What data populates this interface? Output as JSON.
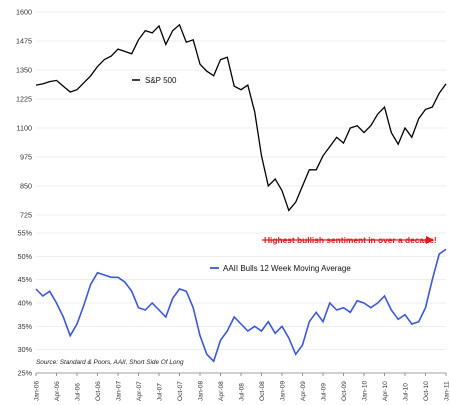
{
  "colors": {
    "sp500_line": "#000000",
    "aaii_line": "#3a58d8",
    "annotation": "#e01c1c",
    "grid": "#dddddd",
    "axis": "#555555"
  },
  "chart_data": [
    {
      "type": "line",
      "series": [
        {
          "name": "S&P 500",
          "x": [
            "2006-01",
            "2006-02",
            "2006-03",
            "2006-04",
            "2006-05",
            "2006-06",
            "2006-07",
            "2006-08",
            "2006-09",
            "2006-10",
            "2006-11",
            "2006-12",
            "2007-01",
            "2007-02",
            "2007-03",
            "2007-04",
            "2007-05",
            "2007-06",
            "2007-07",
            "2007-08",
            "2007-09",
            "2007-10",
            "2007-11",
            "2007-12",
            "2008-01",
            "2008-02",
            "2008-03",
            "2008-04",
            "2008-05",
            "2008-06",
            "2008-07",
            "2008-08",
            "2008-09",
            "2008-10",
            "2008-11",
            "2008-12",
            "2009-01",
            "2009-02",
            "2009-03",
            "2009-04",
            "2009-05",
            "2009-06",
            "2009-07",
            "2009-08",
            "2009-09",
            "2009-10",
            "2009-11",
            "2009-12",
            "2010-01",
            "2010-02",
            "2010-03",
            "2010-04",
            "2010-05",
            "2010-06",
            "2010-07",
            "2010-08",
            "2010-09",
            "2010-10",
            "2010-11",
            "2010-12",
            "2011-01"
          ],
          "values": [
            1285,
            1290,
            1300,
            1305,
            1280,
            1255,
            1265,
            1295,
            1325,
            1365,
            1395,
            1410,
            1440,
            1430,
            1420,
            1480,
            1520,
            1510,
            1540,
            1460,
            1520,
            1545,
            1470,
            1480,
            1375,
            1345,
            1325,
            1395,
            1405,
            1280,
            1265,
            1285,
            1170,
            980,
            850,
            880,
            830,
            745,
            780,
            850,
            920,
            920,
            980,
            1020,
            1060,
            1035,
            1100,
            1110,
            1080,
            1110,
            1160,
            1190,
            1080,
            1030,
            1100,
            1060,
            1140,
            1180,
            1190,
            1250,
            1290
          ]
        }
      ],
      "ylim": [
        725,
        1600
      ],
      "yticks": [
        "1600",
        "1475",
        "1350",
        "1225",
        "1100",
        "975",
        "850",
        "725"
      ],
      "legend": "S&P 500"
    },
    {
      "type": "line",
      "series": [
        {
          "name": "AAII Bulls 12 Week Moving Average",
          "x": [
            "2006-01",
            "2006-02",
            "2006-03",
            "2006-04",
            "2006-05",
            "2006-06",
            "2006-07",
            "2006-08",
            "2006-09",
            "2006-10",
            "2006-11",
            "2006-12",
            "2007-01",
            "2007-02",
            "2007-03",
            "2007-04",
            "2007-05",
            "2007-06",
            "2007-07",
            "2007-08",
            "2007-09",
            "2007-10",
            "2007-11",
            "2007-12",
            "2008-01",
            "2008-02",
            "2008-03",
            "2008-04",
            "2008-05",
            "2008-06",
            "2008-07",
            "2008-08",
            "2008-09",
            "2008-10",
            "2008-11",
            "2008-12",
            "2009-01",
            "2009-02",
            "2009-03",
            "2009-04",
            "2009-05",
            "2009-06",
            "2009-07",
            "2009-08",
            "2009-09",
            "2009-10",
            "2009-11",
            "2009-12",
            "2010-01",
            "2010-02",
            "2010-03",
            "2010-04",
            "2010-05",
            "2010-06",
            "2010-07",
            "2010-08",
            "2010-09",
            "2010-10",
            "2010-11",
            "2010-12",
            "2011-01"
          ],
          "values": [
            43,
            41.5,
            42.5,
            40,
            37,
            33,
            35.5,
            39.5,
            44,
            46.5,
            46,
            45.5,
            45.5,
            44.5,
            42.5,
            39,
            38.5,
            40,
            38.5,
            37,
            41,
            43,
            42.5,
            39,
            33,
            29,
            27.5,
            32,
            34,
            37,
            35.5,
            34,
            35,
            34,
            36,
            33.5,
            35,
            32.5,
            29,
            31,
            36,
            38,
            36,
            40,
            38.5,
            39,
            38,
            40.5,
            40,
            39,
            40,
            41.5,
            38.5,
            36.5,
            37.5,
            35.5,
            36,
            39,
            45,
            50.5,
            51.5
          ]
        }
      ],
      "ylim": [
        25,
        55
      ],
      "yticks": [
        "55%",
        "50%",
        "45%",
        "40%",
        "35%",
        "30%",
        "25%"
      ],
      "legend": "AAII Bulls 12 Week Moving Average",
      "annotation": "Highest bullish sentiment in over a decade!",
      "source": "Source: Standard & Poors, AAII, Short Side Of Long"
    }
  ],
  "x_ticks": [
    "Jan-06",
    "Apr-06",
    "Jul-06",
    "Oct-06",
    "Jan-07",
    "Apr-07",
    "Jul-07",
    "Oct-07",
    "Jan-08",
    "Apr-08",
    "Jul-08",
    "Oct-08",
    "Jan-09",
    "Apr-09",
    "Jul-09",
    "Oct-09",
    "Jan-10",
    "Apr-10",
    "Jul-10",
    "Oct-10",
    "Jan-11"
  ]
}
